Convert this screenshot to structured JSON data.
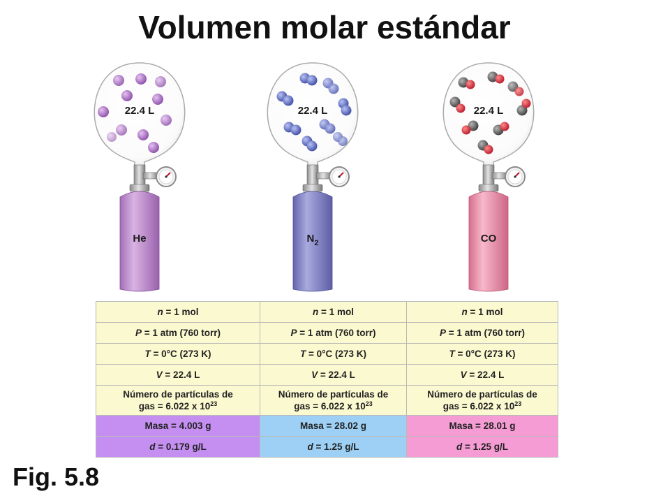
{
  "title": "Volumen molar estándar",
  "figure_label": "Fig. 5.8",
  "gases": [
    {
      "formula_main": "He",
      "formula_sub": "",
      "balloon_label": "22.4 L",
      "n": "= 1 mol",
      "p": "= 1 atm (760 torr)",
      "t": "= 0°C (273 K)",
      "v": "= 22.4 L",
      "particles_line1": "Número de partículas de",
      "particles_line2": "gas = 6.022 x 10",
      "particles_exp": "23",
      "mass": "Masa = 4.003 g",
      "density": "= 0.179 g/L",
      "cylinder_color": "#c79ad8",
      "mass_color": "#c58ff2"
    },
    {
      "formula_main": "N",
      "formula_sub": "2",
      "balloon_label": "22.4 L",
      "n": "= 1 mol",
      "p": "= 1 atm (760 torr)",
      "t": "= 0°C (273 K)",
      "v": "= 22.4 L",
      "particles_line1": "Número de partículas de",
      "particles_line2": "gas = 6.022 x 10",
      "particles_exp": "23",
      "mass": "Masa = 28.02 g",
      "density": "= 1.25 g/L",
      "cylinder_color": "#8e8fd0",
      "mass_color": "#9dd0f4"
    },
    {
      "formula_main": "CO",
      "formula_sub": "",
      "balloon_label": "22.4 L",
      "n": "= 1 mol",
      "p": "= 1 atm (760 torr)",
      "t": "= 0°C (273 K)",
      "v": "= 22.4 L",
      "particles_line1": "Número de partículas de",
      "particles_line2": "gas = 6.022 x 10",
      "particles_exp": "23",
      "mass": "Masa = 28.01 g",
      "density": "= 1.25 g/L",
      "cylinder_color": "#ef98b2",
      "mass_color": "#f59cd4"
    }
  ],
  "symbols": {
    "n": "n",
    "p": "P",
    "t": "T",
    "v": "V",
    "d": "d"
  }
}
